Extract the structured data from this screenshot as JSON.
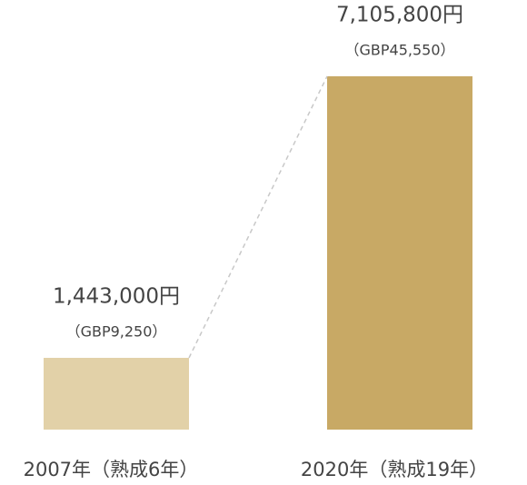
{
  "chart_data": {
    "type": "bar",
    "categories": [
      "2007年（熟成6年）",
      "2020年（熟成19年）"
    ],
    "values": [
      1443000,
      7105800
    ],
    "value_labels": [
      "1,443,000円",
      "7,105,800円"
    ],
    "secondary_labels": [
      "（GBP9,250）",
      "（GBP45,550）"
    ],
    "colors": [
      "#e2d1a8",
      "#c8a965"
    ],
    "connector": true
  }
}
